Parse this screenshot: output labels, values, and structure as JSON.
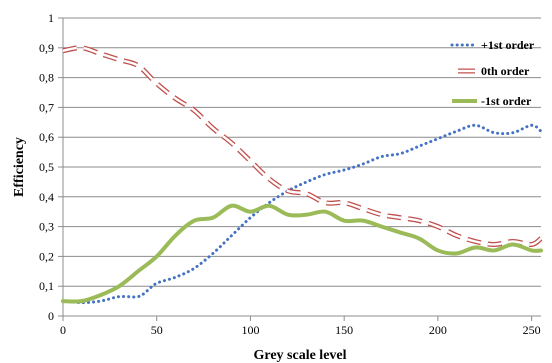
{
  "chart_data": {
    "type": "line",
    "title": "",
    "xlabel": "Grey scale level",
    "ylabel": "Efficiency",
    "xlim": [
      0,
      255
    ],
    "ylim": [
      0,
      1
    ],
    "x_ticks": [
      "0",
      "50",
      "100",
      "150",
      "200",
      "250"
    ],
    "x_tick_values": [
      0,
      50,
      100,
      150,
      200,
      250
    ],
    "y_ticks": [
      "0",
      "0,1",
      "0,2",
      "0,3",
      "0,4",
      "0,5",
      "0,6",
      "0,7",
      "0,8",
      "0,9",
      "1"
    ],
    "y_tick_values": [
      0,
      0.1,
      0.2,
      0.3,
      0.4,
      0.5,
      0.6,
      0.7,
      0.8,
      0.9,
      1.0
    ],
    "grid": "horizontal",
    "legend_position": "right",
    "series": [
      {
        "name": "+1st order",
        "color": "#4472c4",
        "style": "dotted",
        "x": [
          0,
          10,
          20,
          30,
          40,
          45,
          50,
          60,
          70,
          80,
          90,
          100,
          110,
          120,
          130,
          140,
          150,
          160,
          170,
          180,
          190,
          200,
          210,
          220,
          230,
          240,
          250,
          255
        ],
        "y": [
          0.05,
          0.045,
          0.05,
          0.065,
          0.065,
          0.085,
          0.11,
          0.13,
          0.16,
          0.21,
          0.27,
          0.33,
          0.38,
          0.42,
          0.45,
          0.475,
          0.49,
          0.51,
          0.535,
          0.545,
          0.57,
          0.595,
          0.62,
          0.64,
          0.615,
          0.615,
          0.64,
          0.62
        ]
      },
      {
        "name": "0th order",
        "color": "#c0504d",
        "style": "dashed",
        "x": [
          0,
          10,
          20,
          30,
          40,
          50,
          60,
          70,
          80,
          90,
          100,
          110,
          120,
          130,
          140,
          150,
          160,
          170,
          180,
          190,
          200,
          210,
          220,
          230,
          240,
          250,
          255
        ],
        "y": [
          0.89,
          0.9,
          0.88,
          0.86,
          0.84,
          0.78,
          0.73,
          0.69,
          0.63,
          0.58,
          0.52,
          0.46,
          0.42,
          0.41,
          0.38,
          0.38,
          0.36,
          0.34,
          0.33,
          0.32,
          0.3,
          0.27,
          0.25,
          0.24,
          0.25,
          0.24,
          0.26
        ]
      },
      {
        "name": "-1st order",
        "color": "#9bbb59",
        "style": "solid",
        "x": [
          0,
          10,
          20,
          30,
          40,
          50,
          60,
          70,
          80,
          90,
          100,
          110,
          120,
          130,
          140,
          150,
          160,
          170,
          180,
          190,
          200,
          210,
          220,
          230,
          240,
          250,
          255
        ],
        "y": [
          0.05,
          0.05,
          0.07,
          0.1,
          0.15,
          0.2,
          0.27,
          0.32,
          0.33,
          0.37,
          0.35,
          0.37,
          0.34,
          0.34,
          0.35,
          0.32,
          0.32,
          0.3,
          0.28,
          0.26,
          0.22,
          0.21,
          0.23,
          0.22,
          0.24,
          0.22,
          0.22
        ]
      }
    ]
  }
}
